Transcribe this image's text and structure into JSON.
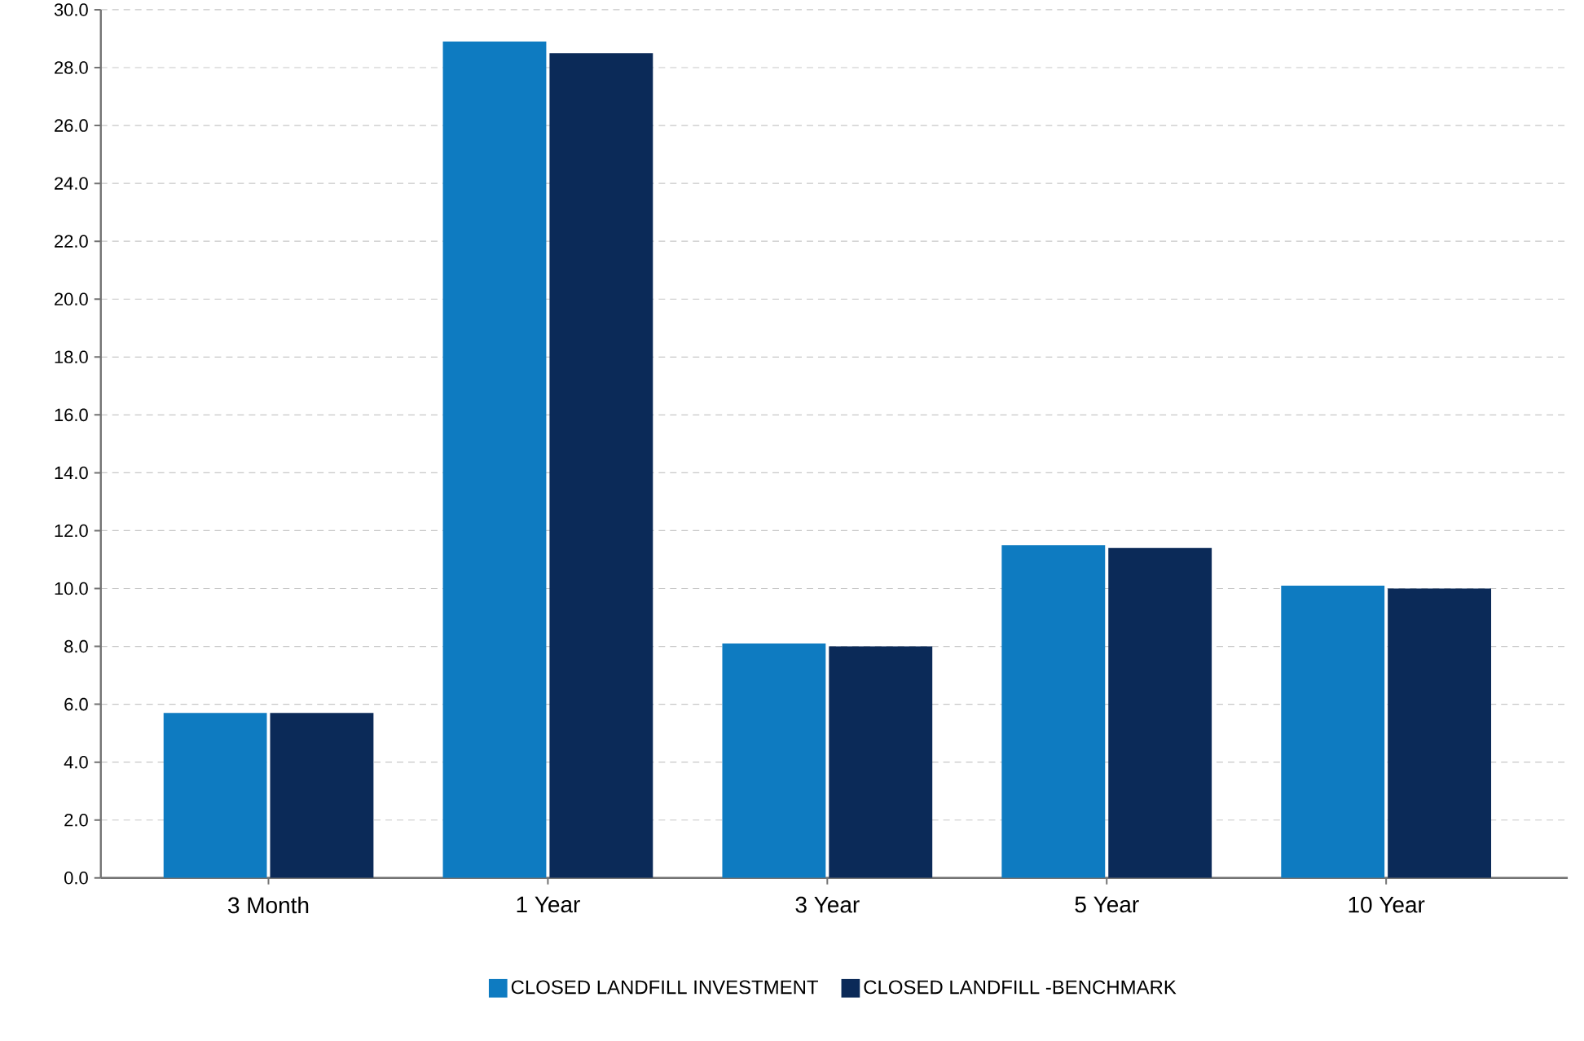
{
  "chart_data": {
    "type": "bar",
    "categories": [
      "3 Month",
      "1 Year",
      "3 Year",
      "5 Year",
      "10 Year"
    ],
    "series": [
      {
        "name": "CLOSED LANDFILL INVESTMENT",
        "color": "#0e7bc1",
        "values": [
          5.7,
          28.9,
          8.1,
          11.5,
          10.1
        ]
      },
      {
        "name": "CLOSED LANDFILL -BENCHMARK",
        "color": "#0b2a58",
        "values": [
          5.7,
          28.5,
          8.0,
          11.4,
          10.0
        ]
      }
    ],
    "ylim": [
      0,
      30
    ],
    "yticks": [
      {
        "value": 0,
        "label": "0.0"
      },
      {
        "value": 2,
        "label": "2.0"
      },
      {
        "value": 4,
        "label": "4.0"
      },
      {
        "value": 6,
        "label": "6.0"
      },
      {
        "value": 8,
        "label": "8.0"
      },
      {
        "value": 10,
        "label": "10.0"
      },
      {
        "value": 12,
        "label": "12.0"
      },
      {
        "value": 14,
        "label": "14.0"
      },
      {
        "value": 16,
        "label": "16.0"
      },
      {
        "value": 18,
        "label": "18.0"
      },
      {
        "value": 20,
        "label": "20.0"
      },
      {
        "value": 22,
        "label": "22.0"
      },
      {
        "value": 24,
        "label": "24.0"
      },
      {
        "value": 26,
        "label": "26.0"
      },
      {
        "value": 28,
        "label": "28.0"
      },
      {
        "value": 30,
        "label": "30.0"
      }
    ],
    "grid": "y",
    "legend": "bottom"
  }
}
